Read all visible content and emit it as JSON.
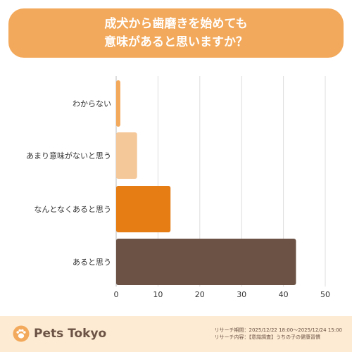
{
  "title": {
    "line1": "成犬から歯磨きを始めても",
    "line2": "意味があると思いますか？"
  },
  "chart_data": {
    "type": "bar",
    "orientation": "horizontal",
    "categories": [
      "わからない",
      "あまり意味がないと思う",
      "なんとなくあると思う",
      "あると思う"
    ],
    "values": [
      1,
      5,
      13,
      43
    ],
    "colors": [
      "#f3a95b",
      "#f5c89a",
      "#e57c14",
      "#6b5244"
    ],
    "xlim": [
      0,
      50
    ],
    "xticks": [
      0,
      10,
      20,
      30,
      40,
      50
    ],
    "grid": true,
    "legend": "none"
  },
  "footer": {
    "brand": "Pets Tokyo",
    "period": "リサーチ期間：2025/12/22 18:00～2025/12/24 15:00",
    "content": "リサーチ内容：【意識調査】うちの子の健康習慣"
  }
}
